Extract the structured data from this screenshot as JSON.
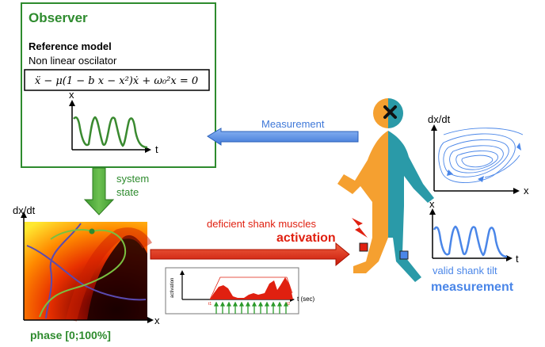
{
  "observer": {
    "title": "Observer",
    "ref_title": "Reference model",
    "subtitle": "Non linear oscilator",
    "equation": "ẍ − μ(1 − b x − x²)ẋ + ω₀²x = 0",
    "plot_y": "x",
    "plot_x": "t"
  },
  "measurement_label": "Measurement",
  "system_state": {
    "line1": "system",
    "line2": "state"
  },
  "phase": {
    "y_label": "dx/dt",
    "x_label": "x",
    "caption": "phase [0;100%]"
  },
  "deficient": {
    "line1": "deficient shank muscles",
    "line2": "activation"
  },
  "activation_plot": {
    "y_label": "activation",
    "x_label": "t (sec)",
    "t1": "t1",
    "t2": "t2"
  },
  "phase_portrait": {
    "y_label": "dx/dt",
    "x_label": "x"
  },
  "shank_plot": {
    "y_label": "x",
    "x_label": "t"
  },
  "valid": {
    "line1": "valid shank tilt",
    "line2": "measurement"
  },
  "colors": {
    "green": "#2e8b2e",
    "blue": "#4a86e8",
    "red": "#e02010",
    "orange": "#f5a030",
    "teal": "#2a9aa8"
  }
}
